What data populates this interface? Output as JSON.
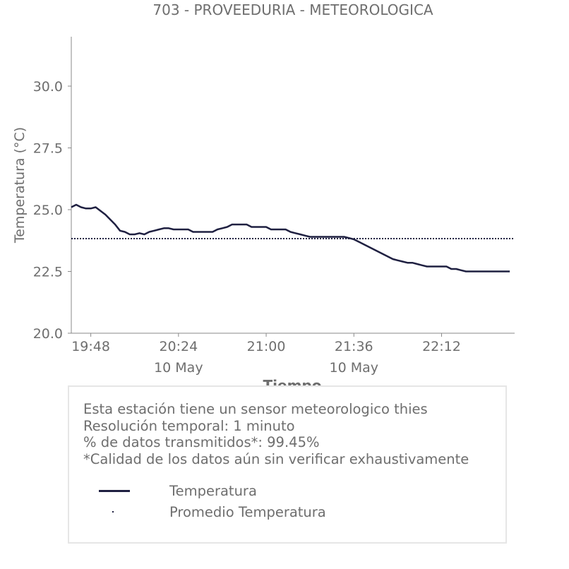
{
  "chart_data": {
    "type": "line",
    "title": "703 - PROVEEDURIA - METEOROLOGICA",
    "xlabel": "Tiempo",
    "ylabel": "Temperatura (°C)",
    "xlim": [
      "19:40",
      "22:42"
    ],
    "ylim": [
      20.0,
      32.0
    ],
    "grid": false,
    "yticks": [
      "20.0",
      "22.5",
      "25.0",
      "27.5",
      "30.0"
    ],
    "xticks": [
      {
        "t": "19:48",
        "sub": ""
      },
      {
        "t": "20:24",
        "sub": "10 May"
      },
      {
        "t": "21:00",
        "sub": ""
      },
      {
        "t": "21:36",
        "sub": "10 May"
      },
      {
        "t": "22:12",
        "sub": ""
      }
    ],
    "series": [
      {
        "name": "Temperatura",
        "color": "#1f2041",
        "style": "solid",
        "points": [
          [
            "19:40",
            25.1
          ],
          [
            "19:42",
            25.2
          ],
          [
            "19:44",
            25.1
          ],
          [
            "19:46",
            25.05
          ],
          [
            "19:48",
            25.05
          ],
          [
            "19:50",
            25.1
          ],
          [
            "19:52",
            24.95
          ],
          [
            "19:54",
            24.8
          ],
          [
            "19:56",
            24.6
          ],
          [
            "19:58",
            24.4
          ],
          [
            "20:00",
            24.15
          ],
          [
            "20:02",
            24.1
          ],
          [
            "20:04",
            24.0
          ],
          [
            "20:06",
            24.0
          ],
          [
            "20:08",
            24.05
          ],
          [
            "20:10",
            24.0
          ],
          [
            "20:12",
            24.1
          ],
          [
            "20:14",
            24.15
          ],
          [
            "20:16",
            24.2
          ],
          [
            "20:18",
            24.25
          ],
          [
            "20:20",
            24.25
          ],
          [
            "20:22",
            24.2
          ],
          [
            "20:24",
            24.2
          ],
          [
            "20:26",
            24.2
          ],
          [
            "20:28",
            24.2
          ],
          [
            "20:30",
            24.1
          ],
          [
            "20:32",
            24.1
          ],
          [
            "20:34",
            24.1
          ],
          [
            "20:36",
            24.1
          ],
          [
            "20:38",
            24.1
          ],
          [
            "20:40",
            24.2
          ],
          [
            "20:42",
            24.25
          ],
          [
            "20:44",
            24.3
          ],
          [
            "20:46",
            24.4
          ],
          [
            "20:48",
            24.4
          ],
          [
            "20:50",
            24.4
          ],
          [
            "20:52",
            24.4
          ],
          [
            "20:54",
            24.3
          ],
          [
            "20:56",
            24.3
          ],
          [
            "20:58",
            24.3
          ],
          [
            "21:00",
            24.3
          ],
          [
            "21:02",
            24.2
          ],
          [
            "21:04",
            24.2
          ],
          [
            "21:06",
            24.2
          ],
          [
            "21:08",
            24.2
          ],
          [
            "21:10",
            24.1
          ],
          [
            "21:12",
            24.05
          ],
          [
            "21:14",
            24.0
          ],
          [
            "21:16",
            23.95
          ],
          [
            "21:18",
            23.9
          ],
          [
            "21:20",
            23.9
          ],
          [
            "21:22",
            23.9
          ],
          [
            "21:24",
            23.9
          ],
          [
            "21:26",
            23.9
          ],
          [
            "21:28",
            23.9
          ],
          [
            "21:30",
            23.9
          ],
          [
            "21:32",
            23.9
          ],
          [
            "21:34",
            23.85
          ],
          [
            "21:36",
            23.8
          ],
          [
            "21:38",
            23.7
          ],
          [
            "21:40",
            23.6
          ],
          [
            "21:42",
            23.5
          ],
          [
            "21:44",
            23.4
          ],
          [
            "21:46",
            23.3
          ],
          [
            "21:48",
            23.2
          ],
          [
            "21:50",
            23.1
          ],
          [
            "21:52",
            23.0
          ],
          [
            "21:54",
            22.95
          ],
          [
            "21:56",
            22.9
          ],
          [
            "21:58",
            22.85
          ],
          [
            "22:00",
            22.85
          ],
          [
            "22:02",
            22.8
          ],
          [
            "22:04",
            22.75
          ],
          [
            "22:06",
            22.7
          ],
          [
            "22:08",
            22.7
          ],
          [
            "22:10",
            22.7
          ],
          [
            "22:12",
            22.7
          ],
          [
            "22:14",
            22.7
          ],
          [
            "22:16",
            22.6
          ],
          [
            "22:18",
            22.6
          ],
          [
            "22:20",
            22.55
          ],
          [
            "22:22",
            22.5
          ],
          [
            "22:24",
            22.5
          ],
          [
            "22:26",
            22.5
          ],
          [
            "22:28",
            22.5
          ],
          [
            "22:30",
            22.5
          ],
          [
            "22:32",
            22.5
          ],
          [
            "22:34",
            22.5
          ],
          [
            "22:36",
            22.5
          ],
          [
            "22:38",
            22.5
          ],
          [
            "22:40",
            22.5
          ]
        ]
      },
      {
        "name": "Promedio Temperatura",
        "color": "#1f2041",
        "style": "dotted",
        "points": [
          [
            "19:40",
            23.83
          ],
          [
            "22:42",
            23.83
          ]
        ]
      }
    ]
  },
  "info": {
    "lines": [
      "Esta estación tiene un sensor meteorologico thies",
      "Resolución temporal: 1 minuto",
      "% de datos transmitidos*: 99.45%",
      "*Calidad de los datos aún sin verificar exhaustivamente"
    ],
    "legend": [
      {
        "label": "Temperatura",
        "style": "solid"
      },
      {
        "label": "Promedio Temperatura",
        "style": "dotted"
      }
    ]
  }
}
